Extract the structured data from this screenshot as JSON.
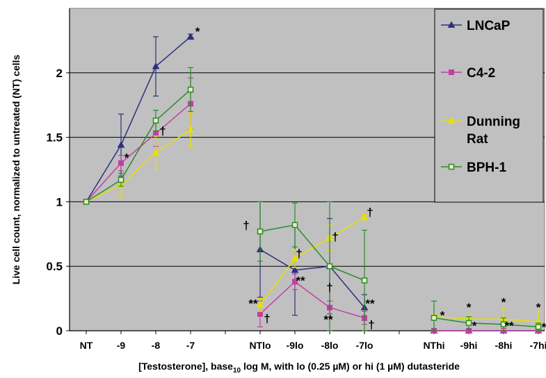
{
  "chart_data": {
    "type": "line",
    "title": "",
    "xlabel_main": "[Testosterone], base",
    "xlabel_sub": "10",
    "xlabel_rest": " log M, with lo (0.25 µM) or hi (1 µM) dutasteride",
    "ylabel": "Live cell count, normalized to untreated (NT) cells",
    "ylim": [
      0,
      2.5
    ],
    "yticks": [
      0,
      0.5,
      1,
      1.5,
      2
    ],
    "ytick_labels": [
      "0",
      "0.5",
      "1",
      "1.5",
      "2"
    ],
    "grid": "horizontal",
    "background": "#c0c0c0",
    "legend_position": "top-right",
    "categories": [
      "NT",
      "-9",
      "-8",
      "-7",
      "NTlo",
      "-9lo",
      "-8lo",
      "-7lo",
      "NThi",
      "-9hi",
      "-8hi",
      "-7hi"
    ],
    "category_slots": [
      0,
      1,
      2,
      3,
      5,
      6,
      7,
      8,
      10,
      11,
      12,
      13
    ],
    "groups": [
      [
        0,
        1,
        2,
        3
      ],
      [
        4,
        5,
        6,
        7
      ],
      [
        8,
        9,
        10,
        11
      ]
    ],
    "series": [
      {
        "name": "LNCaP",
        "color": "#2e2e80",
        "marker": "triangle-filled",
        "values": [
          1.0,
          1.44,
          2.05,
          2.28,
          0.63,
          0.47,
          0.5,
          0.18,
          0.0,
          0.0,
          0.0,
          0.0
        ],
        "errors": [
          0,
          0.24,
          0.23,
          0.02,
          0.37,
          0.35,
          0.37,
          0.1,
          0,
          0,
          0,
          0
        ]
      },
      {
        "name": "C4-2",
        "color": "#c040a0",
        "marker": "square-filled",
        "values": [
          1.0,
          1.3,
          1.53,
          1.76,
          0.13,
          0.38,
          0.18,
          0.1,
          0.0,
          0.0,
          0.0,
          0.0
        ],
        "errors": [
          0,
          0.06,
          0.1,
          0.2,
          0.1,
          0.06,
          0.05,
          0.05,
          0,
          0,
          0,
          0
        ]
      },
      {
        "name": "Dunning Rat",
        "color": "#e8e000",
        "marker": "triangle-filled",
        "values": [
          1.0,
          1.13,
          1.38,
          1.56,
          0.2,
          0.56,
          0.72,
          0.88,
          0.11,
          0.09,
          0.09,
          0.07
        ],
        "errors": [
          0,
          0.09,
          0.13,
          0.13,
          0.05,
          0.07,
          0.1,
          0.02,
          0.02,
          0.03,
          0.08,
          0.08
        ]
      },
      {
        "name": "BPH-1",
        "color": "#2a8a2a",
        "marker": "square-open",
        "values": [
          1.0,
          1.17,
          1.63,
          1.87,
          0.77,
          0.82,
          0.5,
          0.39,
          0.1,
          0.06,
          0.05,
          0.03
        ],
        "errors": [
          0,
          0.05,
          0.08,
          0.17,
          0.23,
          0.17,
          0.5,
          0.39,
          0.13,
          0.05,
          0.05,
          0.03
        ]
      }
    ],
    "annotations": [
      {
        "text": "*",
        "cat": 3,
        "y": 2.28,
        "dx": 10,
        "dy": -2
      },
      {
        "text": "*",
        "cat": 1,
        "y": 1.3,
        "dx": 8,
        "dy": -2
      },
      {
        "text": "†",
        "cat": 2,
        "y": 1.53,
        "dx": 10,
        "dy": 2
      },
      {
        "text": "†",
        "cat": 4,
        "y": 0.83,
        "dx": -20,
        "dy": 8
      },
      {
        "text": "**",
        "cat": 4,
        "y": 0.18,
        "dx": -10,
        "dy": 0
      },
      {
        "text": "†",
        "cat": 4,
        "y": 0.13,
        "dx": 10,
        "dy": 12
      },
      {
        "text": "†",
        "cat": 5,
        "y": 0.58,
        "dx": 6,
        "dy": 2
      },
      {
        "text": "**",
        "cat": 5,
        "y": 0.38,
        "dx": 8,
        "dy": 4
      },
      {
        "text": "†",
        "cat": 6,
        "y": 0.72,
        "dx": 8,
        "dy": 4
      },
      {
        "text": "†",
        "cat": 6,
        "y": 0.37,
        "dx": 0,
        "dy": 12
      },
      {
        "text": "**",
        "cat": 6,
        "y": 0.09,
        "dx": -2,
        "dy": 6
      },
      {
        "text": "†",
        "cat": 7,
        "y": 0.9,
        "dx": 8,
        "dy": 2
      },
      {
        "text": "**",
        "cat": 7,
        "y": 0.18,
        "dx": 8,
        "dy": 0
      },
      {
        "text": "†",
        "cat": 7,
        "y": 0.07,
        "dx": 10,
        "dy": 10
      },
      {
        "text": "*",
        "cat": 8,
        "y": 0.11,
        "dx": 12,
        "dy": 4
      },
      {
        "text": "*",
        "cat": 9,
        "y": 0.15,
        "dx": 0,
        "dy": 0
      },
      {
        "text": "*",
        "cat": 9,
        "y": 0.04,
        "dx": 8,
        "dy": 6
      },
      {
        "text": "*",
        "cat": 10,
        "y": 0.19,
        "dx": 0,
        "dy": 0
      },
      {
        "text": "**",
        "cat": 10,
        "y": 0.04,
        "dx": 8,
        "dy": 6
      },
      {
        "text": "*",
        "cat": 11,
        "y": 0.15,
        "dx": 0,
        "dy": 0
      },
      {
        "text": "*",
        "cat": 11,
        "y": 0.03,
        "dx": 8,
        "dy": 6
      }
    ]
  }
}
